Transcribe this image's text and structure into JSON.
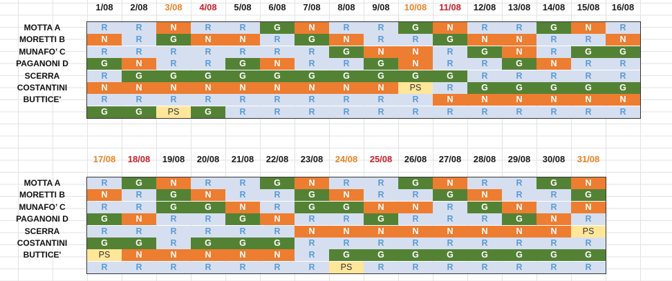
{
  "colors": {
    "R": "#d6dff0",
    "N": "#ed7d31",
    "G": "#548235",
    "PS": "#ffe699",
    "header_orange": "#e8842a",
    "header_red": "#c8202a"
  },
  "blocks": [
    {
      "dates": [
        {
          "label": "1/08",
          "style": ""
        },
        {
          "label": "2/08",
          "style": ""
        },
        {
          "label": "3/08",
          "style": "orange"
        },
        {
          "label": "4/08",
          "style": "red"
        },
        {
          "label": "5/08",
          "style": ""
        },
        {
          "label": "6/08",
          "style": ""
        },
        {
          "label": "7/08",
          "style": ""
        },
        {
          "label": "8/08",
          "style": ""
        },
        {
          "label": "9/08",
          "style": ""
        },
        {
          "label": "10/08",
          "style": "orange"
        },
        {
          "label": "11/08",
          "style": "red"
        },
        {
          "label": "12/08",
          "style": ""
        },
        {
          "label": "13/08",
          "style": ""
        },
        {
          "label": "14/08",
          "style": ""
        },
        {
          "label": "15/08",
          "style": ""
        },
        {
          "label": "16/08",
          "style": ""
        }
      ],
      "rows": [
        {
          "name": "MOTTA A",
          "cells": [
            "R",
            "R",
            "N",
            "R",
            "R",
            "G",
            "N",
            "R",
            "R",
            "G",
            "N",
            "R",
            "R",
            "G",
            "N",
            "R"
          ]
        },
        {
          "name": "MORETTI B",
          "cells": [
            "N",
            "R",
            "G",
            "N",
            "N",
            "R",
            "G",
            "N",
            "R",
            "R",
            "G",
            "N",
            "N",
            "R",
            "R",
            "N"
          ]
        },
        {
          "name": "MUNAFO’ C",
          "cells": [
            "R",
            "R",
            "R",
            "R",
            "R",
            "R",
            "R",
            "G",
            "N",
            "N",
            "R",
            "G",
            "N",
            "R",
            "G",
            "G"
          ]
        },
        {
          "name": "PAGANONI D",
          "cells": [
            "G",
            "N",
            "R",
            "R",
            "G",
            "N",
            "R",
            "R",
            "G",
            "N",
            "R",
            "R",
            "G",
            "N",
            "R",
            "R"
          ]
        },
        {
          "name": "SCERRA",
          "cells": [
            "R",
            "G",
            "G",
            "G",
            "G",
            "G",
            "G",
            "G",
            "G",
            "G",
            "G",
            "R",
            "R",
            "R",
            "R",
            "R"
          ]
        },
        {
          "name": "COSTANTINI",
          "cells": [
            "N",
            "N",
            "N",
            "N",
            "N",
            "N",
            "N",
            "N",
            "N",
            "PS",
            "R",
            "G",
            "G",
            "G",
            "G",
            "G"
          ]
        },
        {
          "name": "BUTTICE'",
          "cells": [
            "R",
            "R",
            "R",
            "R",
            "R",
            "R",
            "R",
            "R",
            "R",
            "R",
            "N",
            "N",
            "N",
            "N",
            "N",
            "N"
          ]
        },
        {
          "name": "",
          "cells": [
            "G",
            "G",
            "PS",
            "G",
            "R",
            "R",
            "R",
            "R",
            "R",
            "R",
            "R",
            "R",
            "R",
            "R",
            "R",
            "R"
          ]
        }
      ]
    },
    {
      "dates": [
        {
          "label": "17/08",
          "style": "orange"
        },
        {
          "label": "18/08",
          "style": "red"
        },
        {
          "label": "19/08",
          "style": ""
        },
        {
          "label": "20/08",
          "style": ""
        },
        {
          "label": "21/08",
          "style": ""
        },
        {
          "label": "22/08",
          "style": ""
        },
        {
          "label": "23/08",
          "style": ""
        },
        {
          "label": "24/08",
          "style": "orange"
        },
        {
          "label": "25/08",
          "style": "red"
        },
        {
          "label": "26/08",
          "style": ""
        },
        {
          "label": "27/08",
          "style": ""
        },
        {
          "label": "28/08",
          "style": ""
        },
        {
          "label": "29/08",
          "style": ""
        },
        {
          "label": "30/08",
          "style": ""
        },
        {
          "label": "31/08",
          "style": "orange"
        }
      ],
      "rows": [
        {
          "name": "MOTTA A",
          "cells": [
            "R",
            "G",
            "N",
            "R",
            "R",
            "G",
            "N",
            "R",
            "R",
            "G",
            "N",
            "R",
            "R",
            "G",
            "N"
          ]
        },
        {
          "name": "MORETTI B",
          "cells": [
            "N",
            "R",
            "G",
            "N",
            "R",
            "R",
            "G",
            "N",
            "R",
            "R",
            "G",
            "N",
            "R",
            "R",
            "G"
          ]
        },
        {
          "name": "MUNAFO’ C",
          "cells": [
            "R",
            "R",
            "G",
            "G",
            "N",
            "R",
            "G",
            "G",
            "N",
            "N",
            "R",
            "G",
            "N",
            "R",
            "N"
          ]
        },
        {
          "name": "PAGANONI D",
          "cells": [
            "G",
            "N",
            "R",
            "R",
            "G",
            "N",
            "R",
            "R",
            "G",
            "R",
            "R",
            "R",
            "G",
            "N",
            "R"
          ]
        },
        {
          "name": "SCERRA",
          "cells": [
            "R",
            "R",
            "R",
            "R",
            "R",
            "R",
            "N",
            "N",
            "N",
            "N",
            "N",
            "N",
            "N",
            "N",
            "PS"
          ]
        },
        {
          "name": "COSTANTINI",
          "cells": [
            "G",
            "G",
            "R",
            "G",
            "G",
            "G",
            "R",
            "R",
            "R",
            "R",
            "R",
            "R",
            "R",
            "R",
            "R"
          ]
        },
        {
          "name": "BUTTICE'",
          "cells": [
            "PS",
            "N",
            "N",
            "N",
            "N",
            "N",
            "R",
            "G",
            "G",
            "G",
            "G",
            "G",
            "G",
            "G",
            "G"
          ]
        },
        {
          "name": "",
          "cells": [
            "R",
            "R",
            "R",
            "R",
            "R",
            "R",
            "R",
            "PS",
            "R",
            "R",
            "R",
            "R",
            "R",
            "R",
            "R"
          ]
        }
      ]
    }
  ]
}
